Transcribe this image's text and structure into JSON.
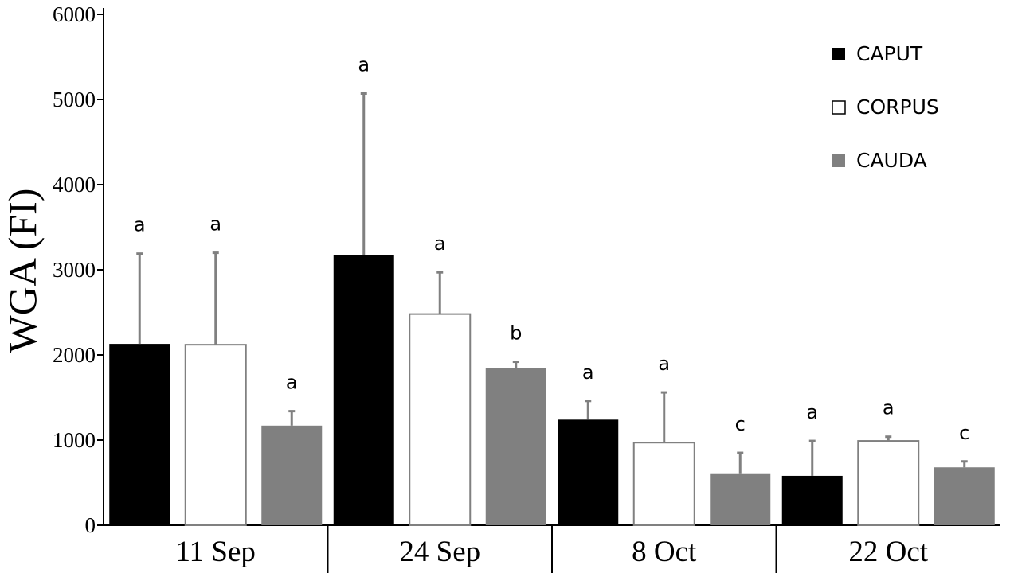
{
  "chart_data": {
    "type": "bar",
    "title": "",
    "xlabel": "",
    "ylabel": "WGA (FI)",
    "ylim": [
      0,
      6000
    ],
    "yticks": [
      "0",
      "1000",
      "2000",
      "3000",
      "4000",
      "5000",
      "6000"
    ],
    "categories": [
      "11 Sep",
      "24 Sep",
      "8 Oct",
      "22 Oct"
    ],
    "legend_position": "top-right",
    "series": [
      {
        "name": "CAPUT",
        "color": "#000000",
        "values": [
          2130,
          3170,
          1240,
          580
        ],
        "errors": [
          1060,
          1900,
          220,
          410
        ],
        "significance": [
          "a",
          "a",
          "a",
          "a"
        ]
      },
      {
        "name": "CORPUS",
        "color": "#ffffff",
        "values": [
          2120,
          2480,
          970,
          990
        ],
        "errors": [
          1080,
          490,
          590,
          50
        ],
        "significance": [
          "a",
          "a",
          "a",
          "a"
        ]
      },
      {
        "name": "CAUDA",
        "color": "#808080",
        "values": [
          1170,
          1850,
          610,
          680
        ],
        "errors": [
          170,
          70,
          240,
          70
        ],
        "significance": [
          "a",
          "b",
          "c",
          "c"
        ]
      }
    ]
  }
}
